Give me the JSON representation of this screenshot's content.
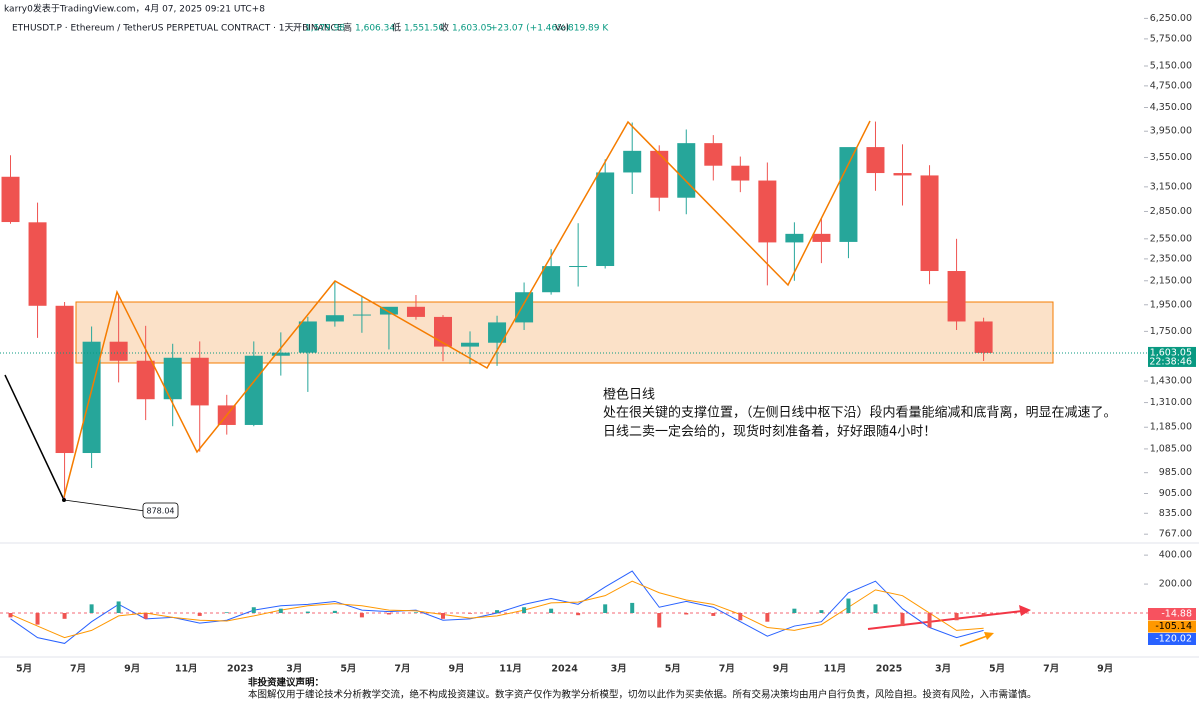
{
  "header": {
    "author": "karry0发表于TradingView.com，4月 07, 2025 09:21 UTC+8",
    "symbol": "ETHUSDT.P · Ethereum / TetherUS PERPETUAL CONTRACT · 1天 · BINANCE",
    "open_label": "开",
    "open": "1,579.98",
    "high_label": "高",
    "high": "1,606.34",
    "low_label": "低",
    "low": "1,551.50",
    "close_label": "收",
    "close": "1,603.05",
    "change": "+23.07 (+1.46%)",
    "volume_label": "Vol",
    "volume": "819.89 K",
    "countdown": "22:38:46"
  },
  "annotation": {
    "low_label": "878.04",
    "lines": [
      "橙色日线",
      "处在很关键的支撑位置，（左侧日线中枢下沿）段内看量能缩减和底背离，明显在减速了。",
      "日线二卖一定会给的，现货时刻准备着，好好跟随4小时！"
    ]
  },
  "footer": {
    "title": "非投资建议声明：",
    "text": "本图解仅用于缠论技术分析教学交流，绝不构成投资建议。数字资产仅作为教学分析模型，切勿以此作为买卖依据。所有交易决策均由用户自行负责，风险自担。投资有风险，入市需谨慎。"
  },
  "chart_data": [
    {
      "type": "candlestick",
      "log_scale": true,
      "up_color": "#26a69a",
      "down_color": "#ef5350",
      "x": [
        "2022-04",
        "2022-05",
        "2022-06",
        "2022-07",
        "2022-08",
        "2022-09",
        "2022-10",
        "2022-11",
        "2022-12",
        "2023-01",
        "2023-02",
        "2023-03",
        "2023-04",
        "2023-05",
        "2023-06",
        "2023-07",
        "2023-08",
        "2023-09",
        "2023-10",
        "2023-11",
        "2023-12",
        "2024-01",
        "2024-02",
        "2024-03",
        "2024-04",
        "2024-05",
        "2024-06",
        "2024-07",
        "2024-08",
        "2024-09",
        "2024-10",
        "2024-11",
        "2024-12",
        "2025-01",
        "2025-02",
        "2025-03",
        "2025-04"
      ],
      "open": [
        3282,
        2727,
        1942,
        1067,
        1678,
        1553,
        1328,
        1572,
        1295,
        1196,
        1585,
        1605,
        1822,
        1869,
        1874,
        1934,
        1856,
        1645,
        1671,
        1815,
        2052,
        2282,
        2283,
        3340,
        3647,
        3014,
        3763,
        3433,
        3232,
        2513,
        2602,
        2518,
        3703,
        3332,
        3300,
        2237,
        1822
      ],
      "high": [
        3582,
        2955,
        1972,
        1785,
        2030,
        1790,
        1664,
        1680,
        1352,
        1680,
        1743,
        1857,
        2141,
        2016,
        1930,
        2029,
        1870,
        1750,
        1865,
        2135,
        2445,
        2717,
        3523,
        4092,
        3730,
        3978,
        3888,
        3563,
        3478,
        2727,
        2770,
        3680,
        4108,
        3745,
        3440,
        2550,
        1850
      ],
      "low": [
        2711,
        1704,
        878.04,
        1004,
        1422,
        1220,
        1190,
        1073,
        1150,
        1190,
        1462,
        1368,
        1784,
        1740,
        1626,
        1835,
        1550,
        1532,
        1521,
        1760,
        2032,
        2100,
        2260,
        3060,
        2853,
        2818,
        3233,
        3083,
        2110,
        2150,
        2310,
        2357,
        3100,
        2920,
        2120,
        1760,
        1551.5
      ],
      "close": [
        2730,
        1942,
        1067,
        1678,
        1553,
        1328,
        1572,
        1295,
        1196,
        1585,
        1605,
        1822,
        1869,
        1874,
        1934,
        1856,
        1645,
        1671,
        1815,
        2052,
        2282,
        2283,
        3340,
        3647,
        3014,
        3763,
        3433,
        3232,
        2513,
        2602,
        2518,
        3703,
        3332,
        3300,
        2237,
        1822,
        1603.05
      ],
      "ylim": [
        740,
        6600
      ],
      "yticks": [
        {
          "value": 6250,
          "label": "6,250.00"
        },
        {
          "value": 5750,
          "label": "5,750.00"
        },
        {
          "value": 5150,
          "label": "5,150.00"
        },
        {
          "value": 4750,
          "label": "4,750.00"
        },
        {
          "value": 4350,
          "label": "4,350.00"
        },
        {
          "value": 3950,
          "label": "3,950.00"
        },
        {
          "value": 3550,
          "label": "3,550.00"
        },
        {
          "value": 3150,
          "label": "3,150.00"
        },
        {
          "value": 2850,
          "label": "2,850.00"
        },
        {
          "value": 2550,
          "label": "2,550.00"
        },
        {
          "value": 2350,
          "label": "2,350.00"
        },
        {
          "value": 2150,
          "label": "2,150.00"
        },
        {
          "value": 1950,
          "label": "1,950.00"
        },
        {
          "value": 1750,
          "label": "1,750.00"
        },
        {
          "value": 1430,
          "label": "1,430.00"
        },
        {
          "value": 1310,
          "label": "1,310.00"
        },
        {
          "value": 1185,
          "label": "1,185.00"
        },
        {
          "value": 1085,
          "label": "1,085.00"
        },
        {
          "value": 985,
          "label": "985.00"
        },
        {
          "value": 905,
          "label": "905.00"
        },
        {
          "value": 835,
          "label": "835.00"
        },
        {
          "value": 767,
          "label": "767.00"
        }
      ],
      "xticks": [
        {
          "value": "2022-05",
          "label": "5月"
        },
        {
          "value": "2022-07",
          "label": "7月"
        },
        {
          "value": "2022-09",
          "label": "9月"
        },
        {
          "value": "2022-11",
          "label": "11月"
        },
        {
          "value": "2023-01",
          "label": "2023"
        },
        {
          "value": "2023-03",
          "label": "3月"
        },
        {
          "value": "2023-05",
          "label": "5月"
        },
        {
          "value": "2023-07",
          "label": "7月"
        },
        {
          "value": "2023-09",
          "label": "9月"
        },
        {
          "value": "2023-11",
          "label": "11月"
        },
        {
          "value": "2024-01",
          "label": "2024"
        },
        {
          "value": "2024-03",
          "label": "3月"
        },
        {
          "value": "2024-05",
          "label": "5月"
        },
        {
          "value": "2024-07",
          "label": "7月"
        },
        {
          "value": "2024-09",
          "label": "9月"
        },
        {
          "value": "2024-11",
          "label": "11月"
        },
        {
          "value": "2025-01",
          "label": "2025"
        },
        {
          "value": "2025-03",
          "label": "3月"
        },
        {
          "value": "2025-05",
          "label": "5月"
        },
        {
          "value": "2025-07",
          "label": "7月"
        },
        {
          "value": "2025-09",
          "label": "9月"
        }
      ]
    },
    {
      "type": "macd",
      "series": [
        {
          "name": "MACD",
          "color": "#2962ff",
          "values": [
            -40,
            -170,
            -210,
            -60,
            60,
            -40,
            -30,
            -70,
            -50,
            20,
            50,
            60,
            80,
            20,
            10,
            20,
            -50,
            -40,
            0,
            60,
            100,
            60,
            180,
            290,
            40,
            80,
            40,
            -60,
            -160,
            -90,
            -60,
            140,
            220,
            30,
            -100,
            -170,
            -120.02
          ]
        },
        {
          "name": "Signal",
          "color": "#ff9800",
          "values": [
            -10,
            -90,
            -170,
            -120,
            -20,
            0,
            -30,
            -50,
            -55,
            -20,
            20,
            50,
            65,
            50,
            20,
            15,
            -10,
            -35,
            -20,
            20,
            70,
            75,
            120,
            220,
            140,
            90,
            60,
            -10,
            -100,
            -120,
            -80,
            40,
            160,
            120,
            0,
            -120,
            -105.14
          ]
        },
        {
          "name": "Histogram",
          "color": "#26a69a",
          "down_color": "#ef5350",
          "values": [
            -30,
            -80,
            -40,
            60,
            80,
            -40,
            0,
            -20,
            5,
            40,
            30,
            10,
            15,
            -30,
            -10,
            5,
            -40,
            -5,
            20,
            40,
            30,
            -15,
            60,
            70,
            -100,
            -10,
            -20,
            -50,
            -60,
            30,
            20,
            100,
            60,
            -90,
            -100,
            -50,
            -14.88
          ]
        }
      ],
      "ylim": [
        -290,
        470
      ],
      "yticks": [
        {
          "value": 400,
          "label": "400.00"
        },
        {
          "value": 200,
          "label": "200.00"
        }
      ]
    }
  ]
}
